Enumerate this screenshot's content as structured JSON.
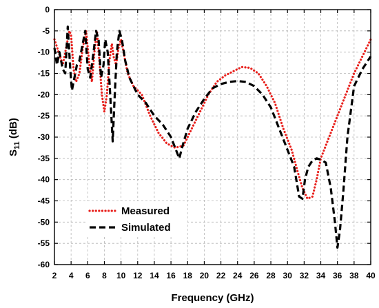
{
  "chart_data": {
    "type": "line",
    "xlabel": "Frequency (GHz)",
    "ylabel": "S11 (dB)",
    "ylabel_parts": {
      "main": "S",
      "sub": "11",
      "rest": " (dB)"
    },
    "xlim": [
      2,
      40
    ],
    "ylim": [
      -60,
      0
    ],
    "xticks": [
      2,
      4,
      6,
      8,
      10,
      12,
      14,
      16,
      18,
      20,
      22,
      24,
      26,
      28,
      30,
      32,
      34,
      36,
      38,
      40
    ],
    "yticks": [
      0,
      -5,
      -10,
      -15,
      -20,
      -25,
      -30,
      -35,
      -40,
      -45,
      -50,
      -55,
      -60
    ],
    "grid": true,
    "legend_position": "bottom-left",
    "series": [
      {
        "name": "Measured",
        "color": "#e8201c",
        "style": "dotted",
        "x": [
          2.0,
          2.5,
          3.0,
          3.5,
          3.8,
          4.0,
          4.3,
          4.6,
          5.0,
          5.4,
          5.8,
          6.2,
          6.5,
          6.8,
          7.1,
          7.4,
          7.7,
          8.0,
          8.3,
          8.6,
          8.9,
          9.1,
          9.4,
          9.7,
          10.0,
          10.4,
          10.8,
          11.5,
          12.5,
          13.5,
          14.5,
          15.5,
          16.5,
          17.5,
          18.5,
          19.5,
          20.5,
          21.5,
          22.5,
          23.5,
          24.5,
          25.5,
          26.5,
          27.5,
          28.5,
          29.5,
          30.5,
          31.2,
          31.8,
          32.4,
          33.0,
          33.5,
          34.0,
          35.0,
          36.0,
          37.0,
          38.0,
          39.0,
          40.0
        ],
        "y": [
          -7,
          -10,
          -13,
          -8,
          -5,
          -6,
          -14,
          -17,
          -15,
          -9,
          -5,
          -13,
          -17,
          -10,
          -5,
          -12,
          -20,
          -24,
          -20,
          -12,
          -8,
          -11,
          -13,
          -9,
          -7,
          -11,
          -15,
          -18,
          -20,
          -25,
          -29,
          -31.5,
          -32.5,
          -32,
          -28,
          -24,
          -20,
          -17,
          -15.5,
          -14.5,
          -13.5,
          -13.7,
          -15,
          -18,
          -22,
          -28,
          -33,
          -38,
          -42,
          -44.5,
          -44,
          -40,
          -35,
          -30,
          -25,
          -20,
          -15,
          -11,
          -7
        ]
      },
      {
        "name": "Simulated",
        "color": "#000000",
        "style": "dashed",
        "x": [
          2.0,
          2.3,
          2.6,
          3.0,
          3.3,
          3.6,
          3.9,
          4.1,
          4.4,
          4.7,
          5.0,
          5.4,
          5.7,
          6.0,
          6.3,
          6.7,
          7.0,
          7.3,
          7.6,
          7.9,
          8.1,
          8.4,
          8.7,
          9.0,
          9.2,
          9.5,
          9.8,
          10.1,
          10.5,
          11.0,
          12.0,
          13.0,
          14.0,
          15.0,
          16.0,
          16.6,
          17.0,
          17.4,
          18.0,
          19.0,
          20.0,
          21.0,
          22.0,
          23.0,
          24.0,
          25.0,
          26.0,
          27.0,
          28.0,
          29.0,
          30.0,
          30.8,
          31.4,
          31.8,
          32.1,
          32.5,
          33.0,
          33.5,
          34.0,
          34.6,
          35.2,
          35.7,
          36.0,
          36.3,
          36.7,
          37.2,
          38.0,
          39.0,
          40.0
        ],
        "y": [
          -9,
          -13,
          -10,
          -14,
          -15,
          -4,
          -14,
          -19,
          -16,
          -13,
          -12,
          -8,
          -5,
          -14,
          -16,
          -10,
          -5,
          -7,
          -16,
          -13,
          -7,
          -10,
          -20,
          -31,
          -22,
          -10,
          -5,
          -7,
          -12,
          -16,
          -20,
          -22,
          -25,
          -27,
          -30,
          -33,
          -35,
          -32,
          -28,
          -24,
          -21,
          -18.5,
          -17.5,
          -17,
          -16.8,
          -17,
          -18,
          -20,
          -23,
          -28,
          -33,
          -37,
          -44,
          -44.5,
          -40,
          -37,
          -35.5,
          -35,
          -35.3,
          -36,
          -42,
          -50,
          -56,
          -52,
          -43,
          -30,
          -18,
          -14,
          -11
        ]
      }
    ]
  }
}
